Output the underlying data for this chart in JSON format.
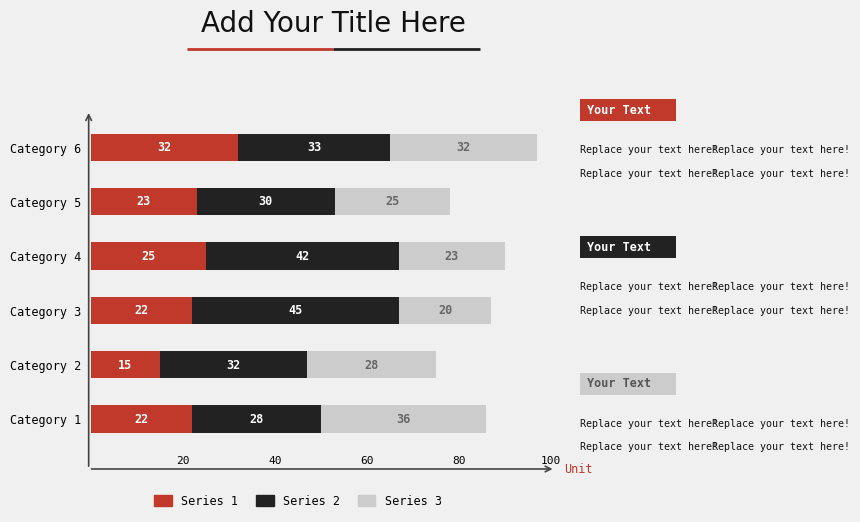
{
  "title": "Add Your Title Here",
  "title_fontsize": 20,
  "background_color": "#f0f0f0",
  "categories": [
    "Category 1",
    "Category 2",
    "Category 3",
    "Category 4",
    "Category 5",
    "Category 6"
  ],
  "series1": [
    22,
    15,
    22,
    25,
    23,
    32
  ],
  "series2": [
    28,
    32,
    45,
    42,
    30,
    33
  ],
  "series3": [
    36,
    28,
    20,
    23,
    25,
    32
  ],
  "series1_color": "#c0392b",
  "series2_color": "#222222",
  "series3_color": "#cccccc",
  "xlabel": "Unit",
  "xlim": [
    0,
    100
  ],
  "xticks": [
    20,
    40,
    60,
    80,
    100
  ],
  "legend_labels": [
    "Series 1",
    "Series 2",
    "Series 3"
  ],
  "bar_text_color": "#ffffff",
  "series3_text_color": "#666666",
  "annotation_boxes": [
    {
      "label": "Your Text",
      "bg": "#c0392b",
      "text_color": "#ffffff"
    },
    {
      "label": "Your Text",
      "bg": "#222222",
      "text_color": "#ffffff"
    },
    {
      "label": "Your Text",
      "bg": "#cccccc",
      "text_color": "#555555"
    }
  ],
  "replace_text": "Replace your text here!",
  "title_underline_left_color": "#c0392b",
  "title_underline_right_color": "#222222",
  "axis_arrow_color": "#444444",
  "font_family": "monospace"
}
